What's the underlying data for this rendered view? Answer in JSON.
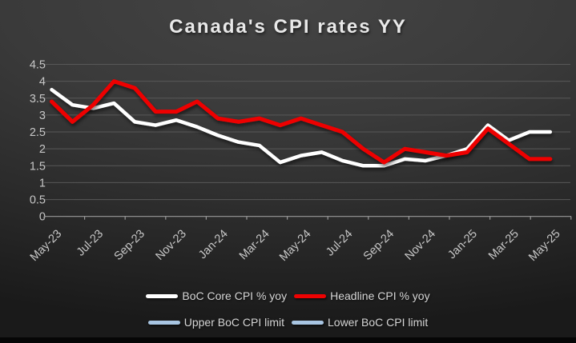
{
  "title": "Canada's CPI rates YY",
  "legend": {
    "items": [
      {
        "label": "BoC Core CPI % yoy",
        "color": "#ffffff"
      },
      {
        "label": "Headline CPI % yoy",
        "color": "#ee0202"
      },
      {
        "label": "Upper BoC CPI limit",
        "color": "#a8c5e2"
      },
      {
        "label": "Lower BoC CPI limit",
        "color": "#a8c5e2"
      }
    ]
  },
  "chart_data": {
    "type": "line",
    "title": "Canada's CPI rates YY",
    "categories": [
      "May-23",
      "Jun-23",
      "Jul-23",
      "Aug-23",
      "Sep-23",
      "Oct-23",
      "Nov-23",
      "Dec-23",
      "Jan-24",
      "Feb-24",
      "Mar-24",
      "Apr-24",
      "May-24",
      "Jun-24",
      "Jul-24",
      "Aug-24",
      "Sep-24",
      "Oct-24",
      "Nov-24",
      "Dec-24",
      "Jan-25",
      "Feb-25",
      "Mar-25",
      "Apr-25",
      "May-25"
    ],
    "x_tick_labels_shown": [
      "May-23",
      "Jul-23",
      "Sep-23",
      "Nov-23",
      "Jan-24",
      "Mar-24",
      "May-24",
      "Jul-24",
      "Sep-24",
      "Nov-24",
      "Jan-25",
      "Mar-25",
      "May-25"
    ],
    "series": [
      {
        "name": "BoC Core CPI % yoy",
        "color": "#ffffff",
        "values": [
          3.75,
          3.3,
          3.2,
          3.35,
          2.8,
          2.7,
          2.85,
          2.65,
          2.4,
          2.2,
          2.1,
          1.6,
          1.8,
          1.9,
          1.65,
          1.5,
          1.5,
          1.7,
          1.65,
          1.8,
          2.0,
          2.7,
          2.25,
          2.5,
          2.5
        ]
      },
      {
        "name": "Headline CPI % yoy",
        "color": "#ee0202",
        "values": [
          3.4,
          2.8,
          3.3,
          4.0,
          3.8,
          3.1,
          3.1,
          3.4,
          2.9,
          2.8,
          2.9,
          2.7,
          2.9,
          2.7,
          2.5,
          2.0,
          1.6,
          2.0,
          1.9,
          1.8,
          1.9,
          2.6,
          2.15,
          1.7,
          1.7
        ]
      },
      {
        "name": "Upper BoC CPI limit",
        "color": "#a8c5e2",
        "constant": 3.0
      },
      {
        "name": "Lower BoC CPI limit",
        "color": "#a8c5e2",
        "constant": 1.0
      }
    ],
    "ylim": [
      0,
      4.5
    ],
    "yticks": [
      0,
      0.5,
      1,
      1.5,
      2,
      2.5,
      3,
      3.5,
      4,
      4.5
    ],
    "grid": "horizontal",
    "legend_position": "bottom"
  }
}
